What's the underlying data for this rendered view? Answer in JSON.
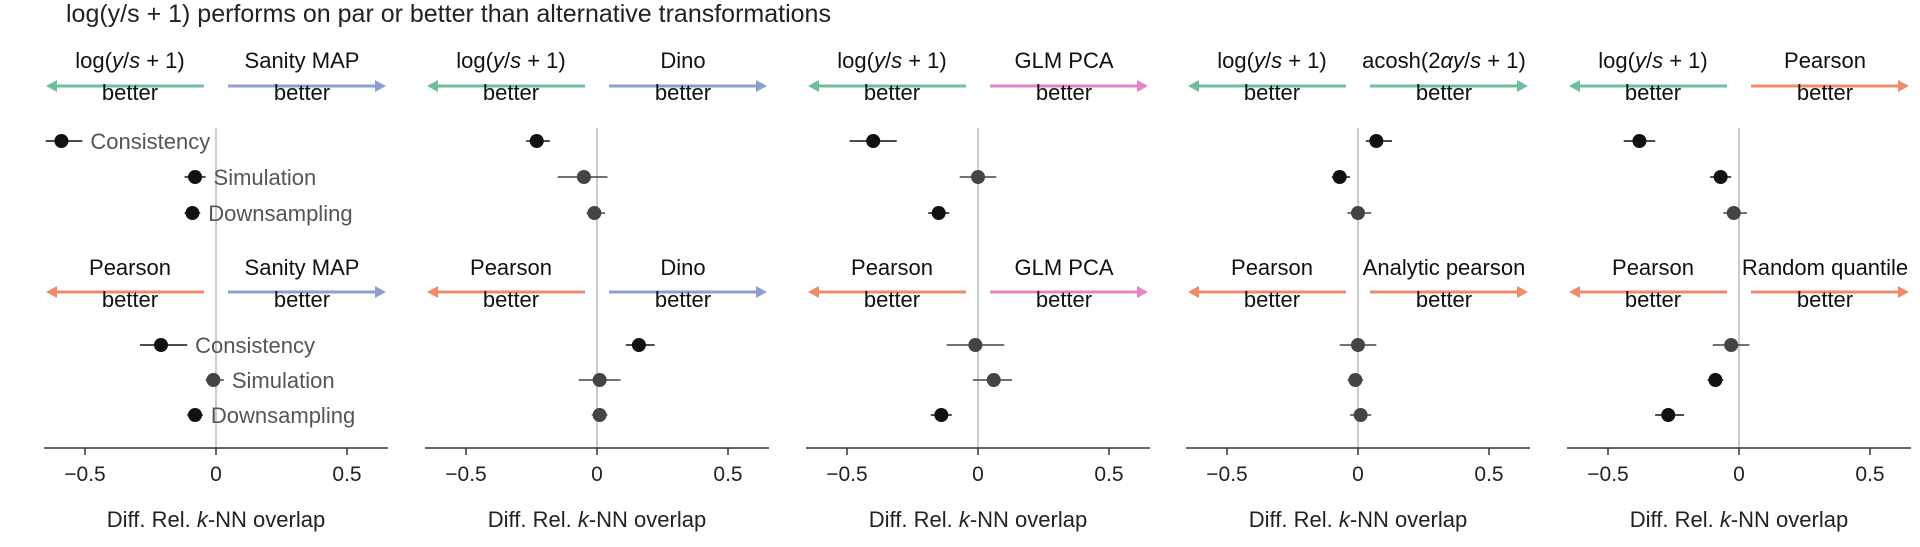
{
  "title": "log(y/s + 1) performs on par or better than alternative transformations",
  "colors": {
    "log": "#6cc09a",
    "sanity_map": "#8e9fcb",
    "dino": "#8e9fcb",
    "glm_pca": "#e384c4",
    "acosh": "#6cc09a",
    "pearson": "#f08a6a",
    "analytic_pearson": "#f08a6a",
    "random_quantile": "#f08a6a",
    "point_black": "#111111",
    "point_grey": "#444444",
    "axis": "#333333",
    "zero_line": "#bbbbbb",
    "label_grey": "#555555"
  },
  "xlabel_parts": [
    "Diff. Rel. ",
    "k",
    "-NN overlap"
  ],
  "better_word": "better",
  "chart_data": [
    {
      "type": "scatter",
      "panel": "col1",
      "xlabel": "Diff. Rel. k-NN overlap",
      "xlim": [
        -0.65,
        0.65
      ],
      "xticks": [
        -0.5,
        0,
        0.5
      ],
      "xtick_labels": [
        "−0.5",
        "0",
        "0.5"
      ],
      "rows": [
        {
          "left_label": "log(y/s + 1)",
          "left_color": "log",
          "right_label": "Sanity MAP",
          "right_color": "sanity_map",
          "series": [
            {
              "name": "Consistency",
              "x": -0.59,
              "lo": -0.65,
              "hi": -0.51,
              "shade": "dark"
            },
            {
              "name": "Simulation",
              "x": -0.08,
              "lo": -0.12,
              "hi": -0.04,
              "shade": "dark"
            },
            {
              "name": "Downsampling",
              "x": -0.09,
              "lo": -0.12,
              "hi": -0.06,
              "shade": "dark"
            }
          ]
        },
        {
          "left_label": "Pearson",
          "left_color": "pearson",
          "right_label": "Sanity MAP",
          "right_color": "sanity_map",
          "series": [
            {
              "name": "Consistency",
              "x": -0.21,
              "lo": -0.29,
              "hi": -0.11,
              "shade": "dark"
            },
            {
              "name": "Simulation",
              "x": -0.01,
              "lo": -0.04,
              "hi": 0.03,
              "shade": "grey"
            },
            {
              "name": "Downsampling",
              "x": -0.08,
              "lo": -0.11,
              "hi": -0.05,
              "shade": "dark"
            }
          ]
        }
      ]
    },
    {
      "type": "scatter",
      "panel": "col2",
      "xlabel": "Diff. Rel. k-NN overlap",
      "xlim": [
        -0.65,
        0.65
      ],
      "xticks": [
        -0.5,
        0,
        0.5
      ],
      "xtick_labels": [
        "−0.5",
        "0",
        "0.5"
      ],
      "rows": [
        {
          "left_label": "log(y/s + 1)",
          "left_color": "log",
          "right_label": "Dino",
          "right_color": "dino",
          "series": [
            {
              "name": "Consistency",
              "x": -0.23,
              "lo": -0.27,
              "hi": -0.18,
              "shade": "dark"
            },
            {
              "name": "Simulation",
              "x": -0.05,
              "lo": -0.15,
              "hi": 0.04,
              "shade": "grey"
            },
            {
              "name": "Downsampling",
              "x": -0.01,
              "lo": -0.04,
              "hi": 0.03,
              "shade": "grey"
            }
          ]
        },
        {
          "left_label": "Pearson",
          "left_color": "pearson",
          "right_label": "Dino",
          "right_color": "dino",
          "series": [
            {
              "name": "Consistency",
              "x": 0.16,
              "lo": 0.11,
              "hi": 0.22,
              "shade": "dark"
            },
            {
              "name": "Simulation",
              "x": 0.01,
              "lo": -0.07,
              "hi": 0.09,
              "shade": "grey"
            },
            {
              "name": "Downsampling",
              "x": 0.01,
              "lo": -0.02,
              "hi": 0.04,
              "shade": "grey"
            }
          ]
        }
      ]
    },
    {
      "type": "scatter",
      "panel": "col3",
      "xlabel": "Diff. Rel. k-NN overlap",
      "xlim": [
        -0.65,
        0.65
      ],
      "xticks": [
        -0.5,
        0,
        0.5
      ],
      "xtick_labels": [
        "−0.5",
        "0",
        "0.5"
      ],
      "rows": [
        {
          "left_label": "log(y/s + 1)",
          "left_color": "log",
          "right_label": "GLM PCA",
          "right_color": "glm_pca",
          "series": [
            {
              "name": "Consistency",
              "x": -0.4,
              "lo": -0.49,
              "hi": -0.31,
              "shade": "dark"
            },
            {
              "name": "Simulation",
              "x": 0.0,
              "lo": -0.07,
              "hi": 0.07,
              "shade": "grey"
            },
            {
              "name": "Downsampling",
              "x": -0.15,
              "lo": -0.19,
              "hi": -0.11,
              "shade": "dark"
            }
          ]
        },
        {
          "left_label": "Pearson",
          "left_color": "pearson",
          "right_label": "GLM PCA",
          "right_color": "glm_pca",
          "series": [
            {
              "name": "Consistency",
              "x": -0.01,
              "lo": -0.12,
              "hi": 0.1,
              "shade": "grey"
            },
            {
              "name": "Simulation",
              "x": 0.06,
              "lo": -0.02,
              "hi": 0.13,
              "shade": "grey"
            },
            {
              "name": "Downsampling",
              "x": -0.14,
              "lo": -0.18,
              "hi": -0.1,
              "shade": "dark"
            }
          ]
        }
      ]
    },
    {
      "type": "scatter",
      "panel": "col4",
      "xlabel": "Diff. Rel. k-NN overlap",
      "xlim": [
        -0.65,
        0.65
      ],
      "xticks": [
        -0.5,
        0,
        0.5
      ],
      "xtick_labels": [
        "−0.5",
        "0",
        "0.5"
      ],
      "rows": [
        {
          "left_label": "log(y/s + 1)",
          "left_color": "log",
          "right_label": "acosh(2αy/s + 1)",
          "right_color": "acosh",
          "series": [
            {
              "name": "Consistency",
              "x": 0.07,
              "lo": 0.03,
              "hi": 0.13,
              "shade": "dark"
            },
            {
              "name": "Simulation",
              "x": -0.07,
              "lo": -0.1,
              "hi": -0.03,
              "shade": "dark"
            },
            {
              "name": "Downsampling",
              "x": 0.0,
              "lo": -0.04,
              "hi": 0.05,
              "shade": "grey"
            }
          ]
        },
        {
          "left_label": "Pearson",
          "left_color": "pearson",
          "right_label": "Analytic pearson",
          "right_color": "analytic_pearson",
          "series": [
            {
              "name": "Consistency",
              "x": 0.0,
              "lo": -0.07,
              "hi": 0.07,
              "shade": "grey"
            },
            {
              "name": "Simulation",
              "x": -0.01,
              "lo": -0.04,
              "hi": 0.02,
              "shade": "grey"
            },
            {
              "name": "Downsampling",
              "x": 0.01,
              "lo": -0.03,
              "hi": 0.05,
              "shade": "grey"
            }
          ]
        }
      ]
    },
    {
      "type": "scatter",
      "panel": "col5",
      "xlabel": "Diff. Rel. k-NN overlap",
      "xlim": [
        -0.65,
        0.65
      ],
      "xticks": [
        -0.5,
        0,
        0.5
      ],
      "xtick_labels": [
        "−0.5",
        "0",
        "0.5"
      ],
      "rows": [
        {
          "left_label": "log(y/s + 1)",
          "left_color": "log",
          "right_label": "Pearson",
          "right_color": "pearson",
          "series": [
            {
              "name": "Consistency",
              "x": -0.38,
              "lo": -0.44,
              "hi": -0.32,
              "shade": "dark"
            },
            {
              "name": "Simulation",
              "x": -0.07,
              "lo": -0.11,
              "hi": -0.03,
              "shade": "dark"
            },
            {
              "name": "Downsampling",
              "x": -0.02,
              "lo": -0.06,
              "hi": 0.03,
              "shade": "grey"
            }
          ]
        },
        {
          "left_label": "Pearson",
          "left_color": "pearson",
          "right_label": "Random quantile",
          "right_color": "random_quantile",
          "series": [
            {
              "name": "Consistency",
              "x": -0.03,
              "lo": -0.1,
              "hi": 0.04,
              "shade": "grey"
            },
            {
              "name": "Simulation",
              "x": -0.09,
              "lo": -0.12,
              "hi": -0.06,
              "shade": "dark"
            },
            {
              "name": "Downsampling",
              "x": -0.27,
              "lo": -0.32,
              "hi": -0.21,
              "shade": "dark"
            }
          ]
        }
      ]
    }
  ]
}
